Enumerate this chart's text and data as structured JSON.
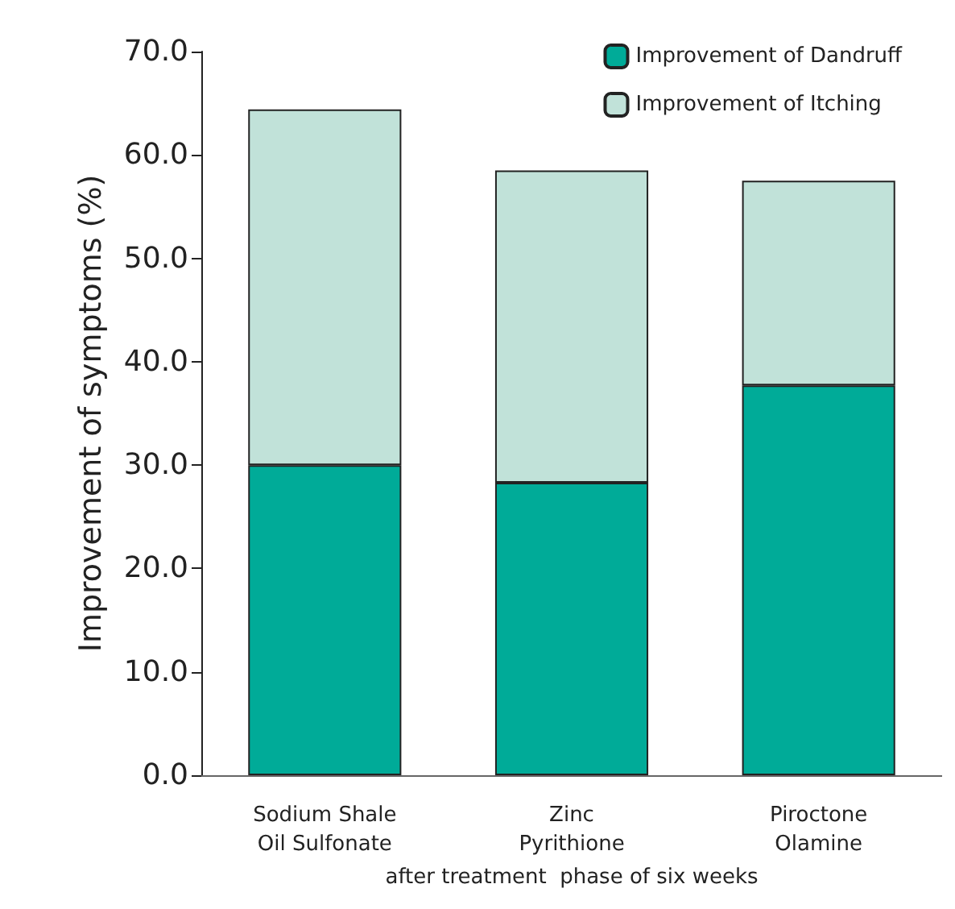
{
  "chart_data": {
    "type": "bar",
    "stacked": true,
    "ylabel": "Improvement of symptoms (%)",
    "xlabel": "after treatment  phase of six weeks",
    "categories": [
      "Sodium Shale\nOil Sulfonate",
      "Zinc\nPyrithione",
      "Piroctone\nOlamine"
    ],
    "series": [
      {
        "name": "Improvement of Dandruff",
        "color": "#00ab98",
        "values": [
          30.0,
          28.3,
          37.7
        ]
      },
      {
        "name": "Improvement of Itching",
        "color": "#c1e2d9",
        "values": [
          34.4,
          30.2,
          19.8
        ]
      }
    ],
    "ylim": [
      0,
      70
    ],
    "yticks": [
      {
        "value": 0,
        "label": "0.0"
      },
      {
        "value": 10,
        "label": "10.0"
      },
      {
        "value": 20,
        "label": "20.0"
      },
      {
        "value": 30,
        "label": "30.0"
      },
      {
        "value": 40,
        "label": "40.0"
      },
      {
        "value": 50,
        "label": "50.0"
      },
      {
        "value": 60,
        "label": "60.0"
      },
      {
        "value": 70,
        "label": "70.0"
      }
    ],
    "grid": false,
    "legend": "top right"
  }
}
